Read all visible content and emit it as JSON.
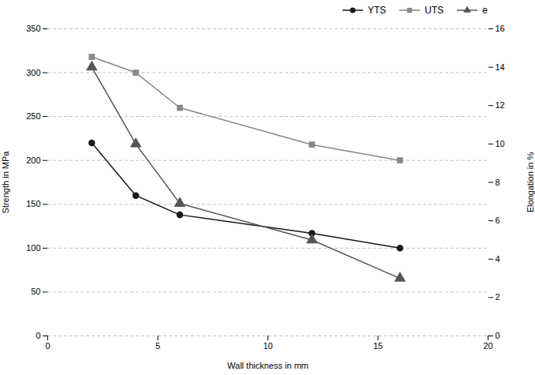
{
  "chart_data": {
    "type": "line",
    "x": [
      2,
      4,
      6,
      12,
      16
    ],
    "xlabel": "Wall thickness in mm",
    "ylabel": "Strength in MPa",
    "y2label": "Elongation in %",
    "xlim": [
      0,
      20
    ],
    "xticks": [
      0,
      5,
      10,
      15,
      20
    ],
    "ylim": [
      0,
      350
    ],
    "yticks": [
      0,
      50,
      100,
      150,
      200,
      250,
      300,
      350
    ],
    "y2lim": [
      0,
      16
    ],
    "y2ticks": [
      0,
      2,
      4,
      6,
      8,
      10,
      12,
      14,
      16
    ],
    "grid": true,
    "legend": "upper right",
    "series": [
      {
        "name": "YTS",
        "color": "#1a1a1a",
        "marker": "circle",
        "values": [
          220,
          160,
          138,
          117,
          100
        ]
      },
      {
        "name": "UTS",
        "color": "#888888",
        "marker": "square",
        "values": [
          318,
          300,
          260,
          218,
          200
        ]
      },
      {
        "name": "e",
        "color": "#555555",
        "marker": "triangle",
        "values": [
          14.0,
          10.0,
          6.9,
          5.0,
          3.0
        ],
        "axis": "y2"
      }
    ]
  }
}
